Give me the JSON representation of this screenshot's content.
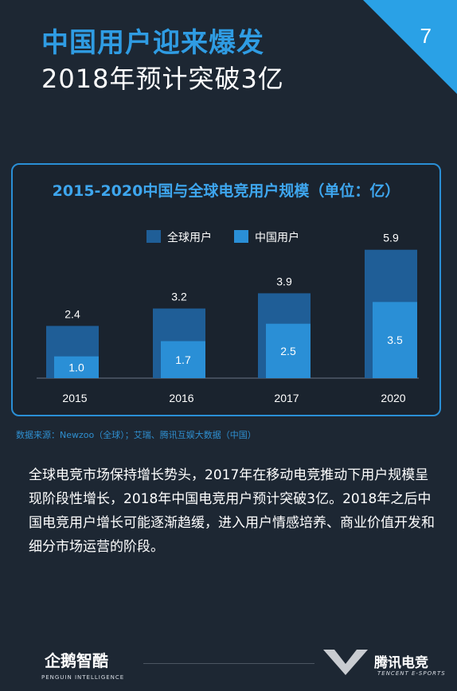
{
  "page_number": "7",
  "headline": "中国用户迎来爆发",
  "subheadline": "2018年预计突破3亿",
  "chart_data": {
    "type": "bar",
    "title": "2015-2020中国与全球电竞用户规模（单位：亿）",
    "categories": [
      "2015",
      "2016",
      "2017",
      "2020"
    ],
    "series": [
      {
        "name": "全球用户",
        "values": [
          2.4,
          3.2,
          3.9,
          5.9
        ],
        "color": "#1f5e97"
      },
      {
        "name": "中国用户",
        "values": [
          1.0,
          1.7,
          2.5,
          3.5
        ],
        "color": "#2a8fd6"
      }
    ],
    "value_labels": {
      "全球用户": [
        "2.4",
        "3.2",
        "3.9",
        "5.9"
      ],
      "中国用户": [
        "1.0",
        "1.7",
        "2.5",
        "3.5"
      ]
    },
    "ylim": [
      0,
      6
    ],
    "grid": false,
    "legend_position": "top-center"
  },
  "source_text": "数据来源：Newzoo（全球）；艾瑞、腾讯互娱大数据（中国）",
  "body_text": "全球电竞市场保持增长势头，2017年在移动电竞推动下用户规模呈现阶段性增长，2018年中国电竞用户预计突破3亿。2018年之后中国电竞用户增长可能逐渐趋缓，进入用户情感培养、商业价值开发和细分市场运营的阶段。",
  "footer": {
    "left_brand": "企鹅智酷",
    "left_sub": "PENGUIN INTELLIGENCE",
    "right_brand": "腾讯电竞",
    "right_sub": "TENCENT E-SPORTS"
  }
}
